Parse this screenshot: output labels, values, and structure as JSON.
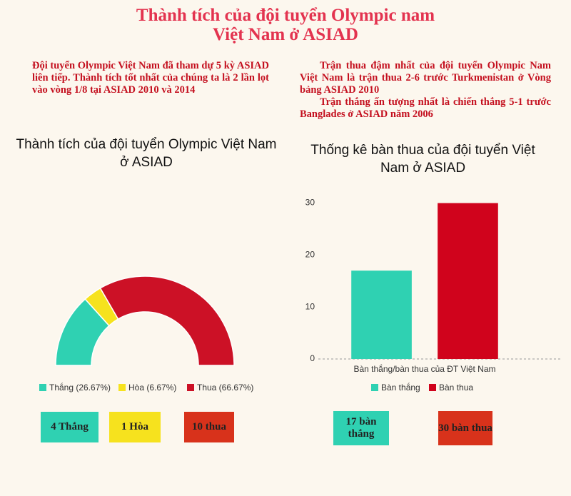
{
  "header": {
    "title_lines": [
      "Thành tích của đội tuyển Olympic nam",
      "Việt Nam ở ASIAD"
    ]
  },
  "notes_left": "Đội tuyển Olympic Việt Nam đã tham dự 5 kỳ ASIAD liên tiếp. Thành tích tốt nhất của chúng ta là 2 lần lọt vào vòng 1/8 tại ASIAD 2010 và 2014",
  "notes_right": [
    "Trận thua đậm nhất của đội tuyển Olympic Nam Việt Nam là trận thua 2-6 trước Turkmenistan ở Vòng bảng ASIAD 2010",
    "Trận thắng ấn tượng nhất là chiến thắng 5-1 trước Banglades ở ASIAD năm 2006"
  ],
  "chart_data": [
    {
      "type": "pie",
      "title": "Thành tích của đội tuyển Olympic Việt Nam ở ASIAD",
      "categories": [
        "Thắng (26.67%)",
        "Hòa (6.67%)",
        "Thua (66.67%)"
      ],
      "values": [
        26.67,
        6.67,
        66.67
      ],
      "colors": [
        "#2fd1b2",
        "#f6e21e",
        "#cc1126"
      ]
    },
    {
      "type": "bar",
      "title": "Thống kê bàn thua của đội tuyển Việt Nam ở ASIAD",
      "categories": [
        "Bàn thắng/bàn thua của ĐT Việt Nam"
      ],
      "series": [
        {
          "name": "Bàn thắng",
          "color": "#2fd1b2",
          "values": [
            17
          ]
        },
        {
          "name": "Bàn thua",
          "color": "#d0031c",
          "values": [
            30
          ]
        }
      ],
      "ylim": [
        0,
        32
      ],
      "yticks": [
        0,
        10,
        20,
        30
      ],
      "grid": false
    }
  ],
  "summary": [
    "4 Thắng",
    "1 Hòa",
    "10 thua",
    "17 bàn thắng",
    "30 bàn thua"
  ]
}
